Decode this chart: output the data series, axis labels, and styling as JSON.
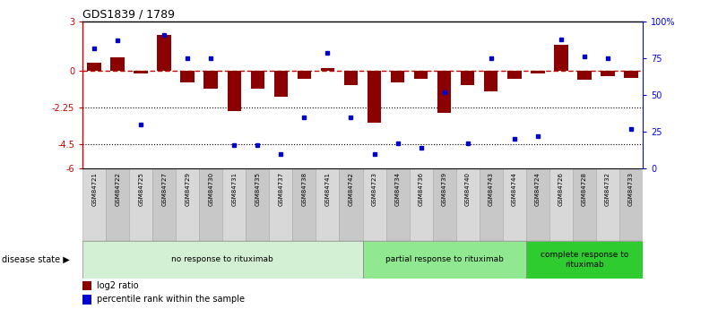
{
  "title": "GDS1839 / 1789",
  "samples": [
    "GSM84721",
    "GSM84722",
    "GSM84725",
    "GSM84727",
    "GSM84729",
    "GSM84730",
    "GSM84731",
    "GSM84735",
    "GSM84737",
    "GSM84738",
    "GSM84741",
    "GSM84742",
    "GSM84723",
    "GSM84734",
    "GSM84736",
    "GSM84739",
    "GSM84740",
    "GSM84743",
    "GSM84744",
    "GSM84724",
    "GSM84726",
    "GSM84728",
    "GSM84732",
    "GSM84733"
  ],
  "log2_ratio": [
    0.5,
    0.8,
    -0.15,
    2.2,
    -0.7,
    -1.1,
    -2.5,
    -1.1,
    -1.6,
    -0.5,
    0.15,
    -0.9,
    -3.2,
    -0.7,
    -0.5,
    -2.6,
    -0.9,
    -1.3,
    -0.5,
    -0.15,
    1.6,
    -0.55,
    -0.35,
    -0.45
  ],
  "percentile": [
    82,
    87,
    30,
    91,
    75,
    75,
    16,
    16,
    10,
    35,
    79,
    35,
    10,
    17,
    14,
    52,
    17,
    75,
    20,
    22,
    88,
    76,
    75,
    27
  ],
  "disease_groups": [
    {
      "label": "no response to rituximab",
      "start": 0,
      "end": 12,
      "color": "#d4f0d4"
    },
    {
      "label": "partial response to rituximab",
      "start": 12,
      "end": 19,
      "color": "#90e890"
    },
    {
      "label": "complete response to\nrituximab",
      "start": 19,
      "end": 24,
      "color": "#2ecc2e"
    }
  ],
  "bar_color": "#8B0000",
  "point_color": "#0000CD",
  "zero_line_color": "#CC0000",
  "ylim_left": [
    -6,
    3
  ],
  "ylim_right": [
    0,
    100
  ],
  "yticks_left": [
    3,
    0,
    -2.25,
    -4.5,
    -6
  ],
  "ytick_labels_left": [
    "3",
    "0",
    "-2.25",
    "-4.5",
    "-6"
  ],
  "yticks_right": [
    100,
    75,
    50,
    25,
    0
  ],
  "ytick_labels_right": [
    "100%",
    "75",
    "50",
    "25",
    "0"
  ],
  "hlines": [
    -2.25,
    -4.5
  ],
  "disease_state_label": "disease state"
}
